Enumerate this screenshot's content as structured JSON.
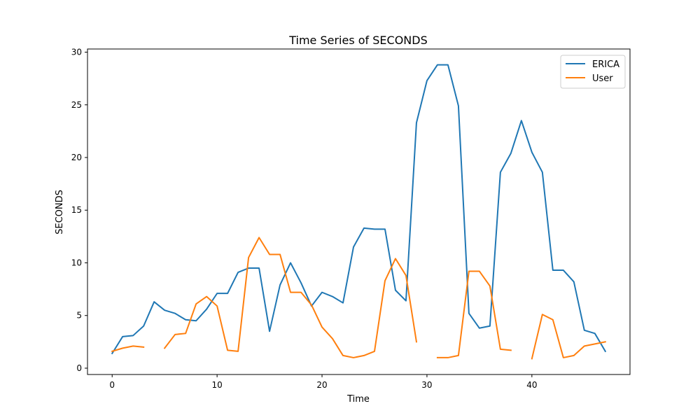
{
  "chart_data": {
    "type": "line",
    "title": "Time Series of SECONDS",
    "xlabel": "Time",
    "ylabel": "SECONDS",
    "xlim": [
      -2.35,
      49.35
    ],
    "ylim": [
      -0.6,
      30.3
    ],
    "xticks": [
      0,
      10,
      20,
      30,
      40
    ],
    "yticks": [
      0,
      5,
      10,
      15,
      20,
      25,
      30
    ],
    "grid": false,
    "legend_position": "top-right",
    "series": [
      {
        "name": "ERICA",
        "color": "#1f77b4",
        "x": [
          0,
          1,
          2,
          3,
          4,
          5,
          6,
          7,
          8,
          9,
          10,
          11,
          12,
          13,
          14,
          15,
          16,
          17,
          18,
          19,
          20,
          21,
          22,
          23,
          24,
          25,
          26,
          27,
          28,
          29,
          30,
          31,
          32,
          33,
          34,
          35,
          36,
          37,
          38,
          39,
          40,
          41,
          42,
          43,
          44,
          45,
          46,
          47
        ],
        "values": [
          1.4,
          3.0,
          3.1,
          4.0,
          6.3,
          5.5,
          5.2,
          4.6,
          4.5,
          5.6,
          7.1,
          7.1,
          9.1,
          9.5,
          9.5,
          3.5,
          7.9,
          10.0,
          8.1,
          5.9,
          7.2,
          6.8,
          6.2,
          11.5,
          13.3,
          13.2,
          13.2,
          7.4,
          6.4,
          23.3,
          27.3,
          28.8,
          28.8,
          24.9,
          5.2,
          3.8,
          4.0,
          18.6,
          20.4,
          23.5,
          20.5,
          18.6,
          9.3,
          9.3,
          8.2,
          3.6,
          3.3,
          1.6
        ]
      },
      {
        "name": "User",
        "color": "#ff7f0e",
        "x": [
          0,
          1,
          2,
          3,
          4,
          5,
          6,
          7,
          8,
          9,
          10,
          11,
          12,
          13,
          14,
          15,
          16,
          17,
          18,
          19,
          20,
          21,
          22,
          23,
          24,
          25,
          26,
          27,
          28,
          29,
          30,
          31,
          32,
          33,
          34,
          35,
          36,
          37,
          38,
          39,
          40,
          41,
          42,
          43,
          44,
          45,
          46,
          47
        ],
        "values": [
          1.6,
          1.9,
          2.1,
          2.0,
          null,
          1.9,
          3.2,
          3.3,
          6.1,
          6.8,
          5.9,
          1.7,
          1.6,
          10.5,
          12.4,
          10.8,
          10.8,
          7.2,
          7.2,
          6.0,
          3.9,
          2.8,
          1.2,
          1.0,
          1.2,
          1.6,
          8.3,
          10.4,
          8.8,
          2.5,
          null,
          1.0,
          1.0,
          1.2,
          9.2,
          9.2,
          7.8,
          1.8,
          1.7,
          null,
          0.9,
          5.1,
          4.6,
          1.0,
          1.2,
          2.1,
          2.3,
          2.5
        ]
      }
    ]
  }
}
